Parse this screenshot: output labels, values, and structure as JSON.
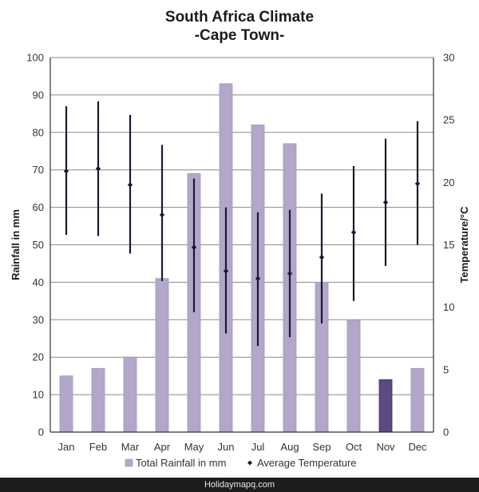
{
  "chart_data": {
    "type": "bar",
    "title": "South Africa Climate",
    "subtitle": "-Cape Town-",
    "categories": [
      "Jan",
      "Feb",
      "Mar",
      "Apr",
      "May",
      "Jun",
      "Jul",
      "Aug",
      "Sep",
      "Oct",
      "Nov",
      "Dec"
    ],
    "series": [
      {
        "name": "Total Rainfall in mm",
        "kind": "bar",
        "axis": "left",
        "values": [
          15,
          17,
          20,
          41,
          69,
          93,
          82,
          77,
          40,
          30,
          14,
          17
        ],
        "color": "#b3a6cb",
        "highlight_color": "#5c4a80",
        "highlight_index": 10
      },
      {
        "name": "Average Temperature",
        "kind": "marker-range",
        "axis": "right",
        "values": [
          20.9,
          21.1,
          19.8,
          17.4,
          14.8,
          12.9,
          12.3,
          12.7,
          14.0,
          16.0,
          18.4,
          19.9
        ],
        "min": [
          15.8,
          15.7,
          14.3,
          12.1,
          9.6,
          7.9,
          6.9,
          7.6,
          8.7,
          10.5,
          13.3,
          15.0
        ],
        "max": [
          26.1,
          26.5,
          25.4,
          23.0,
          20.3,
          18.0,
          17.6,
          17.8,
          19.1,
          21.3,
          23.5,
          24.9
        ],
        "color": "#1a1a2e"
      }
    ],
    "ylabel": "Rainfall in mm",
    "y2label": "Temperature/°C",
    "ylim": [
      0,
      100
    ],
    "y2lim": [
      0,
      30
    ],
    "yticks": [
      "0",
      "10",
      "20",
      "30",
      "40",
      "50",
      "60",
      "70",
      "80",
      "90",
      "100"
    ],
    "y2ticks": [
      "0",
      "5",
      "10",
      "15",
      "20",
      "25",
      "30"
    ],
    "grid": true,
    "legend_position": "bottom"
  },
  "footer": {
    "watermark": "Holidaymapq.com"
  }
}
